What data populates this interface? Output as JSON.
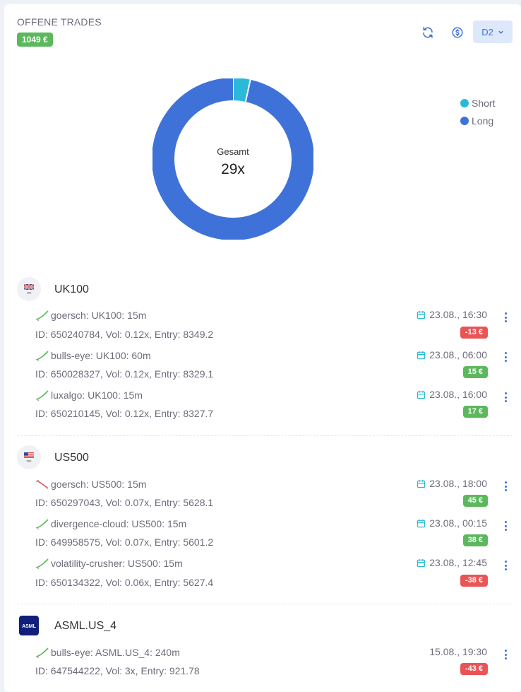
{
  "header": {
    "title": "OFFENE TRADES",
    "total": "1049 €",
    "account_label": "D2"
  },
  "chart_data": {
    "type": "pie",
    "categories": [
      "Short",
      "Long"
    ],
    "values": [
      1,
      28
    ],
    "center_label": "Gesamt",
    "center_value": "29x",
    "colors": {
      "Short": "#2bb8d9",
      "Long": "#3f72d8"
    },
    "legend_position": "top-right"
  },
  "groups": [
    {
      "name": "UK100",
      "flag": "uk",
      "flag_text": "100",
      "trades": [
        {
          "title": "goersch: UK100: 15m",
          "details": "ID: 650240784, Vol: 0.12x, Entry: 8349.2",
          "date": "23.08., 16:30",
          "pnl": "-13 €",
          "trend": "up",
          "positive": false
        },
        {
          "title": "bulls-eye: UK100: 60m",
          "details": "ID: 650028327, Vol: 0.12x, Entry: 8329.1",
          "date": "23.08., 06:00",
          "pnl": "15 €",
          "trend": "up",
          "positive": true
        },
        {
          "title": "luxalgo: UK100: 15m",
          "details": "ID: 650210145, Vol: 0.12x, Entry: 8327.7",
          "date": "23.08., 16:00",
          "pnl": "17 €",
          "trend": "up",
          "positive": true
        }
      ]
    },
    {
      "name": "US500",
      "flag": "us",
      "flag_text": "500",
      "trades": [
        {
          "title": "goersch: US500: 15m",
          "details": "ID: 650297043, Vol: 0.07x, Entry: 5628.1",
          "date": "23.08., 18:00",
          "pnl": "45 €",
          "trend": "down",
          "positive": true
        },
        {
          "title": "divergence-cloud: US500: 15m",
          "details": "ID: 649958575, Vol: 0.07x, Entry: 5601.2",
          "date": "23.08., 00:15",
          "pnl": "38 €",
          "trend": "up",
          "positive": true
        },
        {
          "title": "volatility-crusher: US500: 15m",
          "details": "ID: 650134322, Vol: 0.06x, Entry: 5627.4",
          "date": "23.08., 12:45",
          "pnl": "-38 €",
          "trend": "up",
          "positive": false
        }
      ]
    },
    {
      "name": "ASML.US_4",
      "logo_text": "ASML",
      "trades": [
        {
          "title": "bulls-eye: ASML.US_4: 240m",
          "details": "ID: 647544222, Vol: 3x, Entry: 921.78",
          "date": "15.08., 19:30",
          "pnl": "-43 €",
          "trend": "up",
          "positive": false,
          "no_calendar": true
        }
      ]
    }
  ]
}
